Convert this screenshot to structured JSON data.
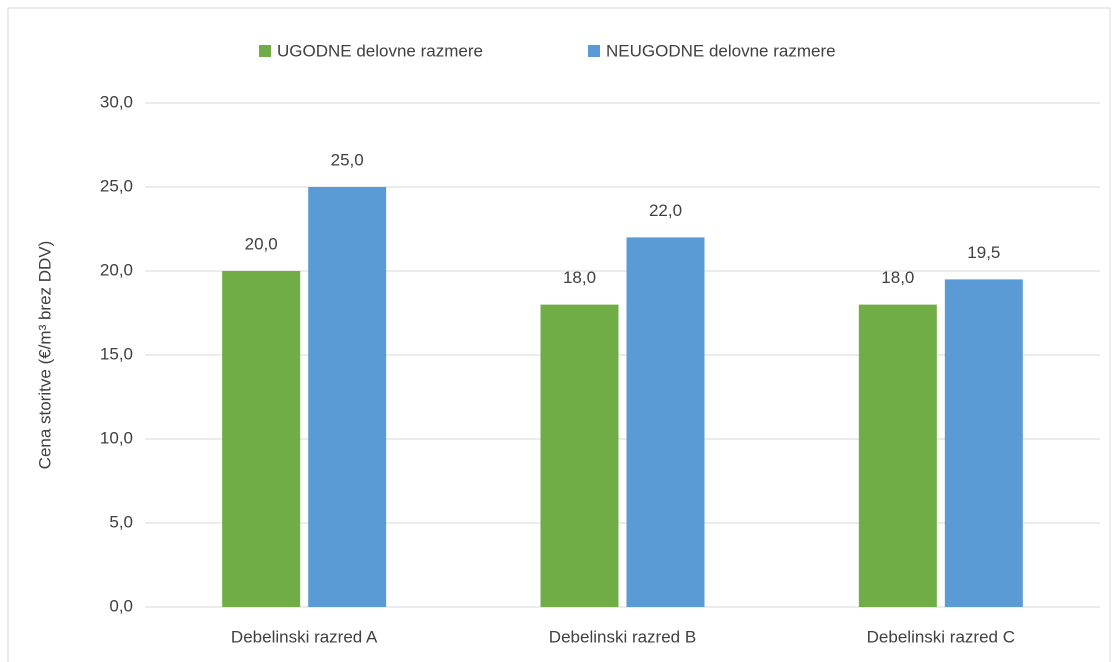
{
  "chart_data": {
    "type": "bar",
    "y_label": "Cena storitve (€/m³ brez DDV)",
    "categories": [
      "Debelinski razred A",
      "Debelinski razred B",
      "Debelinski razred C"
    ],
    "series": [
      {
        "name": "UGODNE delovne razmere",
        "color": "#70ad47",
        "values": [
          20,
          18,
          18
        ],
        "value_labels": [
          "20,0",
          "18,0",
          "18,0"
        ]
      },
      {
        "name": "NEUGODNE delovne razmere",
        "color": "#5b9bd5",
        "values": [
          25,
          22,
          19.5
        ],
        "value_labels": [
          "25,0",
          "22,0",
          "19,5"
        ]
      }
    ],
    "ylim": [
      0,
      30
    ],
    "yticks": [
      {
        "value": 0,
        "label": "0,0"
      },
      {
        "value": 5,
        "label": "5,0"
      },
      {
        "value": 10,
        "label": "10,0"
      },
      {
        "value": 15,
        "label": "15,0"
      },
      {
        "value": 20,
        "label": "20,0"
      },
      {
        "value": 25,
        "label": "25,0"
      },
      {
        "value": 30,
        "label": "30,0"
      }
    ],
    "grid": true,
    "legend": "top"
  }
}
